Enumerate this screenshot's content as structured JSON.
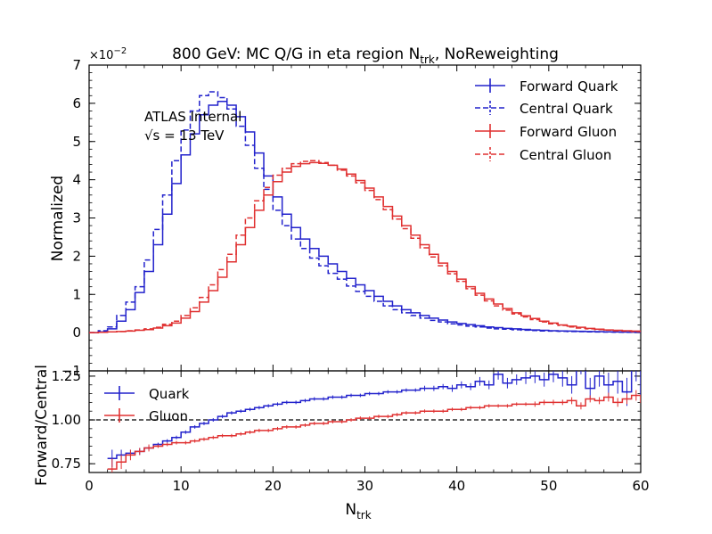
{
  "title": {
    "main": "800 GeV: MC Q/G in eta region N",
    "sub": "trk",
    "tail": ", NoReweighting"
  },
  "annotation": {
    "line1": "ATLAS Internal",
    "line2": "√s = 13 TeV"
  },
  "top_panel": {
    "ylabel": "Normalized",
    "multiplier": "×10",
    "multiplier_exp": "−2"
  },
  "bottom_panel": {
    "ylabel": "Forward/Central",
    "xlabel": "N",
    "xlabel_sub": "trk"
  },
  "colors": {
    "quark": "#2222cc",
    "gluon": "#e03131"
  },
  "chart_data": [
    {
      "type": "line",
      "panel": "top",
      "x_bin_edges": [
        0,
        1,
        2,
        3,
        4,
        5,
        6,
        7,
        8,
        9,
        10,
        11,
        12,
        13,
        14,
        15,
        16,
        17,
        18,
        19,
        20,
        21,
        22,
        23,
        24,
        25,
        26,
        27,
        28,
        29,
        30,
        31,
        32,
        33,
        34,
        35,
        36,
        37,
        38,
        39,
        40,
        41,
        42,
        43,
        44,
        45,
        46,
        47,
        48,
        49,
        50,
        51,
        52,
        53,
        54,
        55,
        56,
        57,
        58,
        59,
        60
      ],
      "xlim": [
        0,
        60
      ],
      "ylim": [
        -1,
        7
      ],
      "y_unit_scale": "x10^-2",
      "xticks": [
        "0",
        "10",
        "20",
        "30",
        "40",
        "50",
        "60"
      ],
      "yticks": [
        "−1",
        "0",
        "1",
        "2",
        "3",
        "4",
        "5",
        "6",
        "7"
      ],
      "series": [
        {
          "name": "Forward Quark",
          "style": "solid",
          "color": "quark",
          "values": [
            0,
            0.02,
            0.1,
            0.3,
            0.6,
            1.05,
            1.6,
            2.3,
            3.1,
            3.9,
            4.65,
            5.2,
            5.7,
            5.95,
            6.05,
            5.95,
            5.65,
            5.25,
            4.7,
            4.1,
            3.55,
            3.1,
            2.75,
            2.45,
            2.2,
            2.0,
            1.8,
            1.6,
            1.42,
            1.25,
            1.1,
            0.95,
            0.82,
            0.7,
            0.6,
            0.52,
            0.45,
            0.38,
            0.33,
            0.28,
            0.24,
            0.21,
            0.18,
            0.15,
            0.13,
            0.11,
            0.1,
            0.085,
            0.07,
            0.06,
            0.05,
            0.045,
            0.04,
            0.035,
            0.03,
            0.025,
            0.02,
            0.018,
            0.015,
            0.012
          ]
        },
        {
          "name": "Central Quark",
          "style": "dashed",
          "color": "quark",
          "values": [
            0,
            0.05,
            0.15,
            0.45,
            0.8,
            1.2,
            1.9,
            2.7,
            3.6,
            4.5,
            5.3,
            5.8,
            6.2,
            6.3,
            6.15,
            5.85,
            5.4,
            4.9,
            4.3,
            3.75,
            3.2,
            2.8,
            2.45,
            2.2,
            1.95,
            1.75,
            1.55,
            1.4,
            1.22,
            1.08,
            0.95,
            0.82,
            0.7,
            0.6,
            0.52,
            0.45,
            0.38,
            0.32,
            0.28,
            0.23,
            0.2,
            0.17,
            0.15,
            0.12,
            0.1,
            0.09,
            0.075,
            0.065,
            0.055,
            0.045,
            0.04,
            0.035,
            0.03,
            0.025,
            0.02,
            0.018,
            0.015,
            0.012,
            0.01,
            0.008
          ]
        },
        {
          "name": "Forward Gluon",
          "style": "solid",
          "color": "gluon",
          "values": [
            0,
            0.01,
            0.02,
            0.03,
            0.04,
            0.06,
            0.08,
            0.12,
            0.18,
            0.25,
            0.38,
            0.55,
            0.8,
            1.1,
            1.45,
            1.85,
            2.3,
            2.75,
            3.2,
            3.6,
            3.95,
            4.2,
            4.35,
            4.42,
            4.45,
            4.43,
            4.38,
            4.28,
            4.15,
            3.98,
            3.78,
            3.55,
            3.3,
            3.05,
            2.8,
            2.55,
            2.3,
            2.05,
            1.82,
            1.6,
            1.4,
            1.2,
            1.03,
            0.88,
            0.75,
            0.63,
            0.52,
            0.44,
            0.37,
            0.3,
            0.25,
            0.2,
            0.17,
            0.14,
            0.11,
            0.09,
            0.07,
            0.06,
            0.05,
            0.04
          ]
        },
        {
          "name": "Central Gluon",
          "style": "dashed",
          "color": "gluon",
          "values": [
            0,
            0.01,
            0.02,
            0.03,
            0.05,
            0.07,
            0.1,
            0.14,
            0.22,
            0.3,
            0.45,
            0.65,
            0.92,
            1.25,
            1.65,
            2.05,
            2.55,
            3.0,
            3.45,
            3.8,
            4.12,
            4.3,
            4.42,
            4.48,
            4.5,
            4.45,
            4.38,
            4.25,
            4.1,
            3.92,
            3.72,
            3.48,
            3.22,
            2.97,
            2.72,
            2.47,
            2.22,
            1.98,
            1.75,
            1.54,
            1.34,
            1.15,
            0.98,
            0.83,
            0.7,
            0.59,
            0.49,
            0.41,
            0.34,
            0.28,
            0.23,
            0.19,
            0.15,
            0.12,
            0.1,
            0.08,
            0.065,
            0.05,
            0.04,
            0.03
          ]
        }
      ]
    },
    {
      "type": "line",
      "panel": "bottom",
      "x_bin_edges_start": 2,
      "xlim": [
        0,
        60
      ],
      "ylim": [
        0.7,
        1.28
      ],
      "yticks": [
        "0.75",
        "1.00",
        "1.25"
      ],
      "reference_line": 1.0,
      "series": [
        {
          "name": "Quark",
          "color": "quark",
          "values": [
            0.78,
            0.8,
            0.81,
            0.82,
            0.84,
            0.86,
            0.88,
            0.9,
            0.93,
            0.96,
            0.98,
            1.0,
            1.02,
            1.04,
            1.05,
            1.06,
            1.07,
            1.08,
            1.09,
            1.1,
            1.1,
            1.11,
            1.12,
            1.12,
            1.13,
            1.13,
            1.14,
            1.14,
            1.15,
            1.15,
            1.16,
            1.16,
            1.17,
            1.17,
            1.18,
            1.18,
            1.19,
            1.18,
            1.2,
            1.19,
            1.22,
            1.2,
            1.26,
            1.21,
            1.23,
            1.24,
            1.25,
            1.23,
            1.26,
            1.24,
            1.2,
            1.32,
            1.18,
            1.25,
            1.2,
            1.22,
            1.16,
            1.3,
            1.14
          ],
          "errors": [
            0.05,
            0.03,
            0.02,
            0.02,
            0.01,
            0.01,
            0.01,
            0.01,
            0.01,
            0.01,
            0.01,
            0.01,
            0.01,
            0.01,
            0.01,
            0.01,
            0.01,
            0.01,
            0.01,
            0.01,
            0.01,
            0.01,
            0.01,
            0.01,
            0.01,
            0.01,
            0.01,
            0.01,
            0.01,
            0.01,
            0.01,
            0.01,
            0.01,
            0.01,
            0.015,
            0.015,
            0.015,
            0.02,
            0.02,
            0.02,
            0.025,
            0.025,
            0.03,
            0.03,
            0.03,
            0.035,
            0.04,
            0.04,
            0.045,
            0.05,
            0.05,
            0.06,
            0.06,
            0.06,
            0.07,
            0.07,
            0.08,
            0.08,
            0.09
          ]
        },
        {
          "name": "Gluon",
          "color": "gluon",
          "values": [
            0.72,
            0.76,
            0.8,
            0.82,
            0.84,
            0.85,
            0.86,
            0.87,
            0.87,
            0.88,
            0.89,
            0.9,
            0.91,
            0.91,
            0.92,
            0.93,
            0.94,
            0.94,
            0.95,
            0.96,
            0.96,
            0.97,
            0.98,
            0.98,
            0.99,
            0.99,
            1.0,
            1.01,
            1.01,
            1.02,
            1.02,
            1.03,
            1.04,
            1.04,
            1.05,
            1.05,
            1.05,
            1.06,
            1.06,
            1.07,
            1.07,
            1.08,
            1.08,
            1.08,
            1.09,
            1.09,
            1.09,
            1.1,
            1.1,
            1.1,
            1.11,
            1.08,
            1.12,
            1.11,
            1.13,
            1.1,
            1.12,
            1.14,
            1.1
          ],
          "errors": [
            0.06,
            0.04,
            0.03,
            0.02,
            0.02,
            0.01,
            0.01,
            0.01,
            0.01,
            0.01,
            0.01,
            0.01,
            0.01,
            0.01,
            0.01,
            0.01,
            0.01,
            0.01,
            0.01,
            0.01,
            0.01,
            0.01,
            0.01,
            0.01,
            0.01,
            0.01,
            0.01,
            0.01,
            0.01,
            0.01,
            0.01,
            0.01,
            0.01,
            0.01,
            0.01,
            0.01,
            0.01,
            0.01,
            0.01,
            0.01,
            0.01,
            0.01,
            0.01,
            0.01,
            0.01,
            0.01,
            0.015,
            0.015,
            0.015,
            0.015,
            0.02,
            0.02,
            0.02,
            0.02,
            0.025,
            0.025,
            0.03,
            0.03,
            0.03
          ]
        }
      ]
    }
  ]
}
